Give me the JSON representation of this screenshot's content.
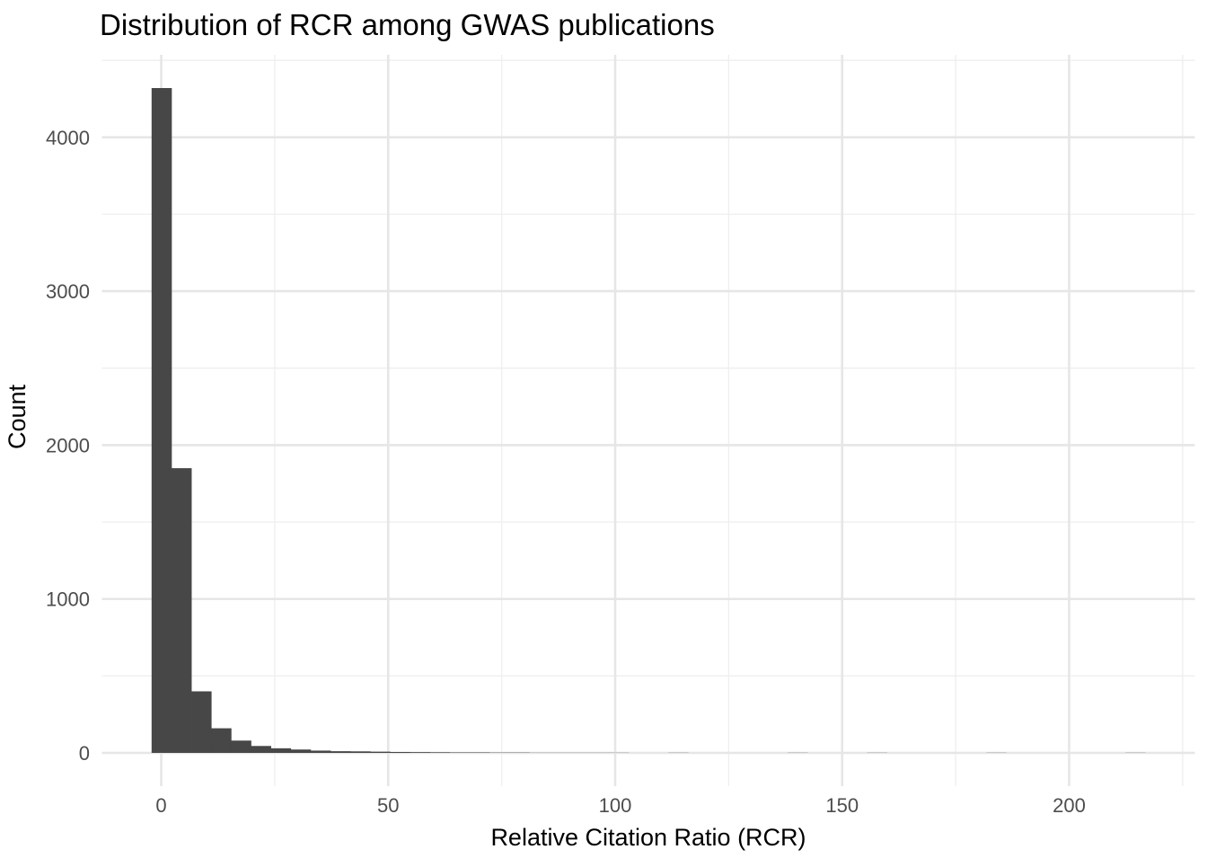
{
  "chart_data": {
    "type": "bar",
    "subtype": "histogram",
    "title": "Distribution of RCR among GWAS publications",
    "xlabel": "Relative Citation Ratio (RCR)",
    "ylabel": "Count",
    "bin_start": -2.12,
    "bin_width": 4.378,
    "counts": [
      4320,
      1850,
      400,
      160,
      80,
      45,
      30,
      22,
      15,
      11,
      10,
      8,
      6,
      5,
      4,
      3,
      3,
      2,
      2,
      1,
      1,
      1,
      1,
      1,
      0,
      0,
      1,
      0,
      0,
      0,
      0,
      0,
      1,
      0,
      0,
      0,
      1,
      0,
      0,
      0,
      0,
      0,
      1,
      0,
      0,
      0,
      0,
      0,
      0,
      1
    ],
    "x_ticks": {
      "values": [
        0,
        50,
        100,
        150,
        200
      ],
      "labels": [
        "0",
        "50",
        "100",
        "150",
        "200"
      ]
    },
    "x_minor_gridlines": [
      25,
      75,
      125,
      175,
      225
    ],
    "y_ticks": {
      "values": [
        0,
        1000,
        2000,
        3000,
        4000
      ],
      "labels": [
        "0",
        "1000",
        "2000",
        "3000",
        "4000"
      ]
    },
    "y_minor_gridlines": [
      500,
      1500,
      2500,
      3500,
      4500
    ],
    "xlim": [
      -13.06,
      227.7
    ],
    "ylim": [
      -216,
      4536
    ],
    "grid": "major+minor",
    "legend": "none",
    "colors": {
      "bar_fill": "#474747",
      "grid_major": "#e6e6e6",
      "grid_minor": "#efefef",
      "panel_background": "#ffffff",
      "figure_background": "#ffffff",
      "title_text": "#000000",
      "axis_title_text": "#000000",
      "tick_label_text": "#4d4d4d"
    }
  }
}
